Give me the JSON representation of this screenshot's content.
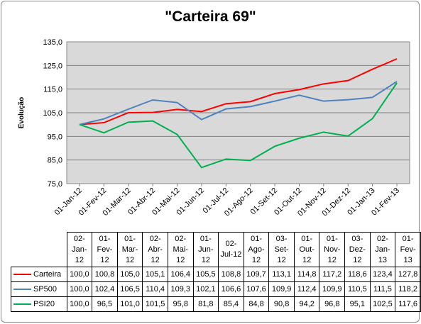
{
  "chart_data": {
    "type": "line",
    "title": "\"Carteira 69\"",
    "xlabel": "",
    "ylabel": "Evolução",
    "ylim": [
      75.0,
      135.0
    ],
    "yticks": [
      "75,0",
      "85,0",
      "95,0",
      "105,0",
      "115,0",
      "125,0",
      "135,0"
    ],
    "grid": true,
    "categories": [
      "01-Jan-12",
      "01-Fev-12",
      "01-Mar-12",
      "01-Abr-12",
      "01-Mai-12",
      "01-Jun-12",
      "01-Jul-12",
      "01-Ago-12",
      "01-Set-12",
      "01-Out-12",
      "01-Nov-12",
      "01-Dez-12",
      "01-Jan-13",
      "01-Fev-13"
    ],
    "table_dates": [
      [
        "02-",
        "Jan-",
        "12"
      ],
      [
        "01-",
        "Fev-",
        "12"
      ],
      [
        "01-",
        "Mar-",
        "12"
      ],
      [
        "02-",
        "Abr-",
        "12"
      ],
      [
        "02-",
        "Mai-",
        "12"
      ],
      [
        "01-",
        "Jun-",
        "12"
      ],
      [
        "02-",
        "Jul-12"
      ],
      [
        "01-",
        "Ago-",
        "12"
      ],
      [
        "03-",
        "Set-",
        "12"
      ],
      [
        "01-",
        "Out-",
        "12"
      ],
      [
        "01-",
        "Nov-",
        "12"
      ],
      [
        "03-",
        "Dez-",
        "12"
      ],
      [
        "02-",
        "Jan-",
        "13"
      ],
      [
        "01-",
        "Fev-",
        "13"
      ]
    ],
    "series": [
      {
        "name": "Carteira",
        "color": "#ff0000",
        "values": [
          100.0,
          100.8,
          105.0,
          105.1,
          106.4,
          105.5,
          108.8,
          109.7,
          113.1,
          114.8,
          117.2,
          118.6,
          123.4,
          127.8
        ],
        "labels": [
          "100,0",
          "100,8",
          "105,0",
          "105,1",
          "106,4",
          "105,5",
          "108,8",
          "109,7",
          "113,1",
          "114,8",
          "117,2",
          "118,6",
          "123,4",
          "127,8"
        ]
      },
      {
        "name": "SP500",
        "color": "#4f81bd",
        "values": [
          100.0,
          102.4,
          106.5,
          110.4,
          109.3,
          102.1,
          106.6,
          107.6,
          109.9,
          112.4,
          109.9,
          110.5,
          111.5,
          118.2
        ],
        "labels": [
          "100,0",
          "102,4",
          "106,5",
          "110,4",
          "109,3",
          "102,1",
          "106,6",
          "107,6",
          "109,9",
          "112,4",
          "109,9",
          "110,5",
          "111,5",
          "118,2"
        ]
      },
      {
        "name": "PSI20",
        "color": "#00b050",
        "values": [
          100.0,
          96.5,
          101.0,
          101.5,
          95.8,
          81.8,
          85.4,
          84.8,
          90.8,
          94.2,
          96.8,
          95.1,
          102.5,
          117.6
        ],
        "labels": [
          "100,0",
          "96,5",
          "101,0",
          "101,5",
          "95,8",
          "81,8",
          "85,4",
          "84,8",
          "90,8",
          "94,2",
          "96,8",
          "95,1",
          "102,5",
          "117,6"
        ]
      }
    ]
  }
}
